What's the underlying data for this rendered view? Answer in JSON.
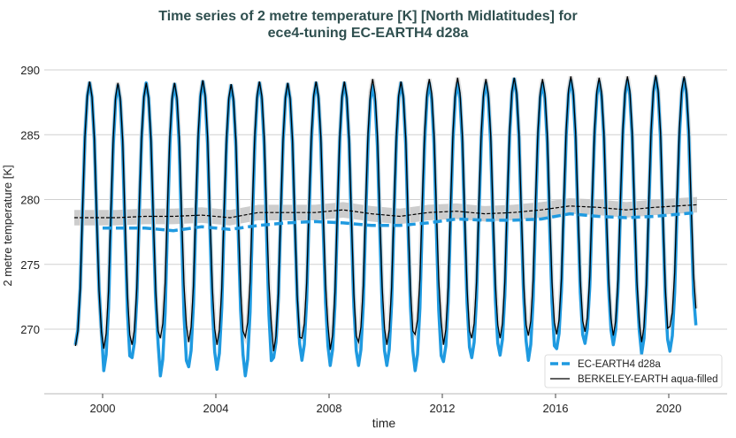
{
  "chart_data": {
    "type": "line",
    "title_line1": "Time series of 2 metre temperature [K] [North Midlatitudes] for",
    "title_line2": "ece4-tuning EC-EARTH4 d28a",
    "xlabel": "time",
    "ylabel": "2 metre temperature [K]",
    "xlim": [
      1997.9,
      2022.1
    ],
    "ylim": [
      265.5,
      290.9
    ],
    "xticks": [
      2000,
      2004,
      2008,
      2012,
      2016,
      2020
    ],
    "yticks": [
      270,
      275,
      280,
      285,
      290
    ],
    "grid": "horizontal",
    "legend_position": "bottom-right",
    "colors": {
      "model": "#1f9ae0",
      "obs": "#000000",
      "band": "#c8c8c8",
      "title": "#2f4f4f"
    },
    "years": [
      1999,
      2000,
      2001,
      2002,
      2003,
      2004,
      2005,
      2006,
      2007,
      2008,
      2009,
      2010,
      2011,
      2012,
      2013,
      2014,
      2015,
      2016,
      2017,
      2018,
      2019,
      2020
    ],
    "series": [
      {
        "name": "EC-EARTH4 d28a",
        "style": "monthly solid, annual mean dashed",
        "annual_min": [
          268.8,
          266.8,
          267.8,
          266.4,
          267.1,
          266.9,
          266.4,
          267.8,
          267.6,
          267.2,
          267.2,
          267.2,
          266.8,
          267.5,
          267.8,
          268.0,
          267.6,
          268.5,
          268.9,
          268.8,
          268.1,
          268.3
        ],
        "annual_max": [
          289.0,
          288.8,
          289.0,
          288.9,
          289.1,
          288.8,
          289.0,
          288.9,
          289.0,
          289.0,
          288.8,
          289.0,
          289.0,
          289.0,
          289.0,
          289.3,
          289.0,
          289.2,
          289.1,
          289.2,
          289.4,
          289.3
        ],
        "annual_mean": [
          null,
          277.8,
          277.8,
          277.6,
          277.9,
          277.7,
          278.0,
          278.2,
          278.3,
          278.2,
          278.0,
          278.0,
          278.2,
          278.5,
          278.4,
          278.4,
          278.5,
          278.9,
          278.7,
          278.6,
          278.7,
          279.0
        ],
        "last_value": 270.3
      },
      {
        "name": "BERKELEY-EARTH aqua-filled",
        "style": "monthly solid, annual mean dashed with uncertainty band",
        "annual_min": [
          268.7,
          268.5,
          268.8,
          269.3,
          269.0,
          268.8,
          269.4,
          268.3,
          269.3,
          268.4,
          269.0,
          268.8,
          269.6,
          268.8,
          269.3,
          269.3,
          269.5,
          269.6,
          269.8,
          269.5,
          269.0,
          270.2
        ],
        "annual_max": [
          289.1,
          289.0,
          289.0,
          289.0,
          289.2,
          288.9,
          289.1,
          289.0,
          289.1,
          289.1,
          289.3,
          289.1,
          289.3,
          289.4,
          289.3,
          289.4,
          289.3,
          289.5,
          289.4,
          289.5,
          289.6,
          289.5
        ],
        "annual_mean": [
          278.6,
          278.6,
          278.7,
          278.7,
          278.8,
          278.6,
          279.0,
          279.0,
          279.0,
          279.2,
          278.9,
          278.7,
          279.0,
          279.1,
          278.9,
          279.0,
          279.2,
          279.5,
          279.4,
          279.2,
          279.4,
          279.6
        ],
        "band_halfwidth": 0.6,
        "last_value": 271.6
      }
    ]
  }
}
